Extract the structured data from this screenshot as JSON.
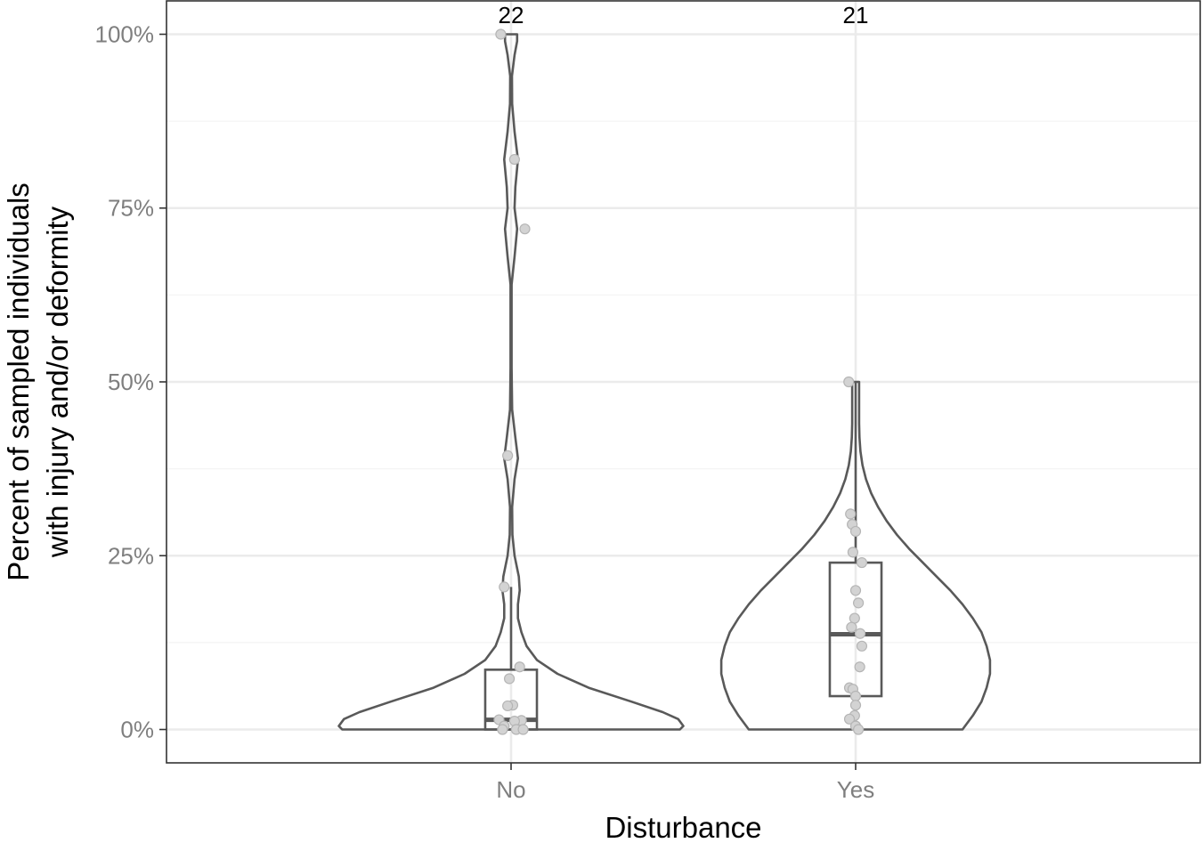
{
  "chart_data": {
    "type": "violin",
    "title": "",
    "xlabel": "Disturbance",
    "ylabel_lines": [
      "Percent of sampled individuals",
      "with injury and/or deformity"
    ],
    "ylim": [
      -0.048,
      1.048
    ],
    "y_ticks": [
      {
        "value": 0,
        "label": "0%"
      },
      {
        "value": 0.25,
        "label": "25%"
      },
      {
        "value": 0.5,
        "label": "50%"
      },
      {
        "value": 0.75,
        "label": "75%"
      },
      {
        "value": 1.0,
        "label": "100%"
      }
    ],
    "y_minor_ticks": [
      0.125,
      0.375,
      0.625,
      0.875
    ],
    "grid": true,
    "colors": {
      "outline": "#595959",
      "points_fill": "#d3d3d3",
      "points_stroke": "#b5b5b5",
      "grid_major": "#ebebeb",
      "grid_minor": "#f4f4f4",
      "tick_label": "#7f7f7f",
      "panel_border": "#333333"
    },
    "categories": [
      "No",
      "Yes"
    ],
    "groups": [
      {
        "category": "No",
        "n_label": "22",
        "box": {
          "q1": 0.0,
          "median": 0.014,
          "q3": 0.086,
          "whisker_low": 0.0,
          "whisker_high": 0.205
        },
        "points": [
          {
            "y": 1.0,
            "jitter": -0.03
          },
          {
            "y": 0.82,
            "jitter": 0.01
          },
          {
            "y": 0.72,
            "jitter": 0.04
          },
          {
            "y": 0.394,
            "jitter": -0.01
          },
          {
            "y": 0.205,
            "jitter": -0.02
          },
          {
            "y": 0.09,
            "jitter": 0.025
          },
          {
            "y": 0.073,
            "jitter": -0.005
          },
          {
            "y": 0.035,
            "jitter": 0.005
          },
          {
            "y": 0.034,
            "jitter": -0.01
          },
          {
            "y": 0.014,
            "jitter": -0.035
          },
          {
            "y": 0.013,
            "jitter": 0.03
          },
          {
            "y": 0.012,
            "jitter": 0.01
          },
          {
            "y": 0.005,
            "jitter": -0.02
          },
          {
            "y": 0.0,
            "jitter": -0.025
          },
          {
            "y": 0.0,
            "jitter": 0.015
          },
          {
            "y": 0.0,
            "jitter": 0.035
          }
        ],
        "violin_profile": [
          [
            0.0,
            0.98
          ],
          [
            0.005,
            1.0
          ],
          [
            0.015,
            0.97
          ],
          [
            0.025,
            0.88
          ],
          [
            0.04,
            0.7
          ],
          [
            0.06,
            0.45
          ],
          [
            0.08,
            0.27
          ],
          [
            0.1,
            0.15
          ],
          [
            0.12,
            0.09
          ],
          [
            0.14,
            0.06
          ],
          [
            0.16,
            0.04
          ],
          [
            0.18,
            0.04
          ],
          [
            0.2,
            0.05
          ],
          [
            0.22,
            0.045
          ],
          [
            0.25,
            0.02
          ],
          [
            0.28,
            0.008
          ],
          [
            0.32,
            0.006
          ],
          [
            0.36,
            0.02
          ],
          [
            0.39,
            0.04
          ],
          [
            0.42,
            0.025
          ],
          [
            0.46,
            0.006
          ],
          [
            0.52,
            0.003
          ],
          [
            0.58,
            0.003
          ],
          [
            0.64,
            0.003
          ],
          [
            0.68,
            0.02
          ],
          [
            0.72,
            0.035
          ],
          [
            0.75,
            0.02
          ],
          [
            0.78,
            0.025
          ],
          [
            0.82,
            0.04
          ],
          [
            0.86,
            0.02
          ],
          [
            0.9,
            0.006
          ],
          [
            0.94,
            0.005
          ],
          [
            0.97,
            0.02
          ],
          [
            0.99,
            0.035
          ],
          [
            1.0,
            0.035
          ]
        ]
      },
      {
        "category": "Yes",
        "n_label": "21",
        "box": {
          "q1": 0.048,
          "median": 0.137,
          "q3": 0.24,
          "whisker_low": 0.0,
          "whisker_high": 0.5
        },
        "points": [
          {
            "y": 0.5,
            "jitter": -0.02
          },
          {
            "y": 0.31,
            "jitter": -0.015
          },
          {
            "y": 0.295,
            "jitter": -0.01
          },
          {
            "y": 0.285,
            "jitter": 0.0
          },
          {
            "y": 0.255,
            "jitter": -0.008
          },
          {
            "y": 0.24,
            "jitter": 0.018
          },
          {
            "y": 0.2,
            "jitter": 0.0
          },
          {
            "y": 0.182,
            "jitter": 0.008
          },
          {
            "y": 0.16,
            "jitter": -0.003
          },
          {
            "y": 0.147,
            "jitter": -0.012
          },
          {
            "y": 0.138,
            "jitter": 0.013
          },
          {
            "y": 0.12,
            "jitter": 0.018
          },
          {
            "y": 0.09,
            "jitter": 0.012
          },
          {
            "y": 0.06,
            "jitter": -0.018
          },
          {
            "y": 0.058,
            "jitter": -0.008
          },
          {
            "y": 0.048,
            "jitter": 0.0
          },
          {
            "y": 0.035,
            "jitter": 0.0
          },
          {
            "y": 0.02,
            "jitter": -0.003
          },
          {
            "y": 0.015,
            "jitter": -0.018
          },
          {
            "y": 0.005,
            "jitter": 0.0
          },
          {
            "y": 0.0,
            "jitter": 0.008
          }
        ],
        "violin_profile": [
          [
            0.0,
            0.62
          ],
          [
            0.02,
            0.68
          ],
          [
            0.04,
            0.73
          ],
          [
            0.06,
            0.76
          ],
          [
            0.08,
            0.78
          ],
          [
            0.1,
            0.78
          ],
          [
            0.12,
            0.76
          ],
          [
            0.14,
            0.73
          ],
          [
            0.16,
            0.68
          ],
          [
            0.18,
            0.62
          ],
          [
            0.2,
            0.55
          ],
          [
            0.22,
            0.47
          ],
          [
            0.24,
            0.39
          ],
          [
            0.26,
            0.31
          ],
          [
            0.28,
            0.24
          ],
          [
            0.3,
            0.18
          ],
          [
            0.32,
            0.13
          ],
          [
            0.34,
            0.09
          ],
          [
            0.36,
            0.06
          ],
          [
            0.38,
            0.04
          ],
          [
            0.4,
            0.028
          ],
          [
            0.42,
            0.022
          ],
          [
            0.44,
            0.02
          ],
          [
            0.46,
            0.02
          ],
          [
            0.48,
            0.02
          ],
          [
            0.5,
            0.02
          ]
        ]
      }
    ]
  }
}
